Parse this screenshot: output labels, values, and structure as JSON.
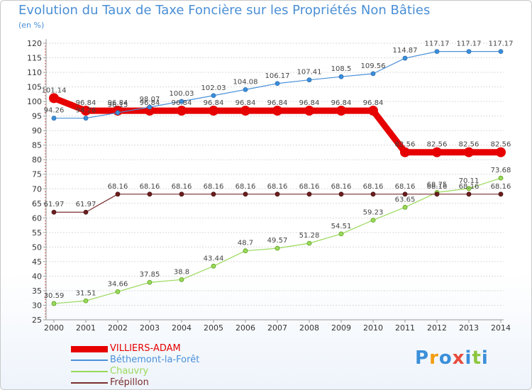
{
  "chart_data": {
    "type": "line",
    "title": "Evolution du Taux de Taxe Foncière sur les Propriétés Non Bâties",
    "ylabel": "(en %)",
    "xlabel": "",
    "ylim": [
      25,
      120
    ],
    "ytick_step": 5,
    "categories": [
      "2000",
      "2001",
      "2002",
      "2003",
      "2004",
      "2005",
      "2006",
      "2007",
      "2008",
      "2009",
      "2010",
      "2011",
      "2012",
      "2013",
      "2014"
    ],
    "series": [
      {
        "name": "VILLIERS-ADAM",
        "color": "#e60000",
        "values": [
          101.14,
          96.84,
          96.84,
          96.84,
          96.84,
          96.84,
          96.84,
          96.84,
          96.84,
          96.84,
          96.84,
          82.56,
          82.56,
          82.56,
          82.56
        ],
        "labels": [
          "101.14",
          "96.84",
          "96.84",
          "96.84",
          "96.84",
          "96.84",
          "96.84",
          "96.84",
          "96.84",
          "96.84",
          "96.84",
          "82.56",
          "82.56",
          "82.56",
          "82.56"
        ]
      },
      {
        "name": "Béthemont-la-Forêt",
        "color": "#4a90d9",
        "values": [
          94.26,
          94.26,
          96.15,
          98.07,
          100.03,
          102.03,
          104.08,
          106.17,
          107.41,
          108.5,
          109.56,
          114.87,
          117.17,
          117.17,
          117.17
        ],
        "labels": [
          "94.26",
          "94.26",
          "96.15",
          "98.07",
          "100.03",
          "102.03",
          "104.08",
          "106.17",
          "107.41",
          "108.5",
          "109.56",
          "114.87",
          "117.17",
          "117.17",
          "117.17"
        ]
      },
      {
        "name": "Chauvry",
        "color": "#9ad95a",
        "values": [
          30.59,
          31.51,
          34.66,
          37.85,
          38.8,
          43.44,
          48.7,
          49.57,
          51.28,
          54.51,
          59.23,
          63.65,
          68.75,
          70.11,
          73.68
        ],
        "labels": [
          "30.59",
          "31.51",
          "34.66",
          "37.85",
          "38.8",
          "43.44",
          "48.7",
          "49.57",
          "51.28",
          "54.51",
          "59.23",
          "63.65",
          "68.75",
          "70.11",
          "73.68"
        ]
      },
      {
        "name": "Frépillon",
        "color": "#7a2e2e",
        "values": [
          61.97,
          61.97,
          68.16,
          68.16,
          68.16,
          68.16,
          68.16,
          68.16,
          68.16,
          68.16,
          68.16,
          68.16,
          68.16,
          68.16,
          68.16
        ],
        "labels": [
          "61.97",
          "61.97",
          "68.16",
          "68.16",
          "68.16",
          "68.16",
          "68.16",
          "68.16",
          "68.16",
          "68.16",
          "68.16",
          "68.16",
          "68.16",
          "68.16",
          "68.16"
        ]
      }
    ],
    "legend_position": "bottom-left"
  },
  "logo": {
    "text": "Proxiti",
    "letters": [
      "P",
      "r",
      "o",
      "x",
      "i",
      "t",
      "i"
    ],
    "colors": [
      "#3b8fd9",
      "#f39c12",
      "#3b8fd9",
      "#e74c3c",
      "#3b8fd9",
      "#8cc63f",
      "#3b8fd9"
    ]
  }
}
